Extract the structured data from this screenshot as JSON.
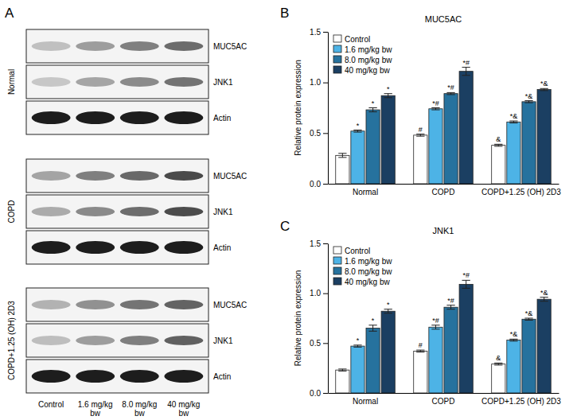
{
  "blot": {
    "annotations": [
      "A"
    ],
    "groups": [
      {
        "label": "Normal",
        "rows": [
          "MUC5AC",
          "JNK1",
          "Actin"
        ]
      },
      {
        "label": "COPD",
        "rows": [
          "MUC5AC",
          "JNK1",
          "Actin"
        ]
      },
      {
        "label": "COPD+1.25 (OH) 2D3",
        "rows": [
          "MUC5AC",
          "JNK1",
          "Actin"
        ]
      }
    ],
    "lanes": [
      "Control",
      "1.6 mg/kg bw",
      "8.0 mg/kg bw",
      "40 mg/kg bw"
    ]
  },
  "chart_data": [
    {
      "type": "bar",
      "title": "MUC5AC",
      "annotations": [
        "B"
      ],
      "y_label": "Relative protein expression",
      "categories": [
        "Normal",
        "COPD",
        "COPD+1.25 (OH) 2D3"
      ],
      "ylim": [
        0,
        1.5
      ],
      "yticks": [
        {
          "value": 0,
          "label": "0.0"
        },
        {
          "value": 0.5,
          "label": "0.5"
        },
        {
          "value": 1,
          "label": "1.0"
        },
        {
          "value": 1.5,
          "label": "1.5"
        }
      ],
      "legend": "top-left",
      "series": [
        {
          "name": "Control",
          "color": "#ffffff",
          "values": [
            0.28,
            0.48,
            0.38
          ],
          "errors": [
            0.02,
            0.01,
            0.01
          ],
          "significance": [
            null,
            "#",
            "&"
          ]
        },
        {
          "name": "1.6 mg/kg bw",
          "color": "#4db3e6",
          "values": [
            0.52,
            0.74,
            0.61
          ],
          "errors": [
            0.01,
            0.01,
            0.01
          ],
          "significance": [
            "*",
            "*#",
            "*&"
          ]
        },
        {
          "name": "8.0 mg/kg bw",
          "color": "#26729e",
          "values": [
            0.73,
            0.89,
            0.81
          ],
          "errors": [
            0.02,
            0.01,
            0.01
          ],
          "significance": [
            "*",
            "*#",
            "*&"
          ]
        },
        {
          "name": "40 mg/kg bw",
          "color": "#1b3f62",
          "values": [
            0.87,
            1.11,
            0.93
          ],
          "errors": [
            0.02,
            0.04,
            0.01
          ],
          "significance": [
            "*",
            "*#",
            "*&"
          ]
        }
      ]
    },
    {
      "type": "bar",
      "title": "JNK1",
      "annotations": [
        "C"
      ],
      "y_label": "Relative protein expression",
      "categories": [
        "Normal",
        "COPD",
        "COPD+1.25 (OH) 2D3"
      ],
      "ylim": [
        0,
        1.5
      ],
      "yticks": [
        {
          "value": 0,
          "label": "0.0"
        },
        {
          "value": 0.5,
          "label": "0.5"
        },
        {
          "value": 1,
          "label": "1.0"
        },
        {
          "value": 1.5,
          "label": "1.5"
        }
      ],
      "legend": "top-left",
      "series": [
        {
          "name": "Control",
          "color": "#ffffff",
          "values": [
            0.23,
            0.42,
            0.29
          ],
          "errors": [
            0.01,
            0.01,
            0.01
          ],
          "significance": [
            null,
            "#",
            "&"
          ]
        },
        {
          "name": "1.6 mg/kg bw",
          "color": "#4db3e6",
          "values": [
            0.47,
            0.66,
            0.53
          ],
          "errors": [
            0.01,
            0.02,
            0.01
          ],
          "significance": [
            "*",
            "*#",
            "*&"
          ]
        },
        {
          "name": "8.0 mg/kg bw",
          "color": "#26729e",
          "values": [
            0.65,
            0.86,
            0.74
          ],
          "errors": [
            0.03,
            0.02,
            0.01
          ],
          "significance": [
            "*",
            "*#",
            "*&"
          ]
        },
        {
          "name": "40 mg/kg bw",
          "color": "#1b3f62",
          "values": [
            0.82,
            1.09,
            0.94
          ],
          "errors": [
            0.02,
            0.04,
            0.02
          ],
          "significance": [
            "*",
            "*#",
            "*&"
          ]
        }
      ]
    }
  ]
}
